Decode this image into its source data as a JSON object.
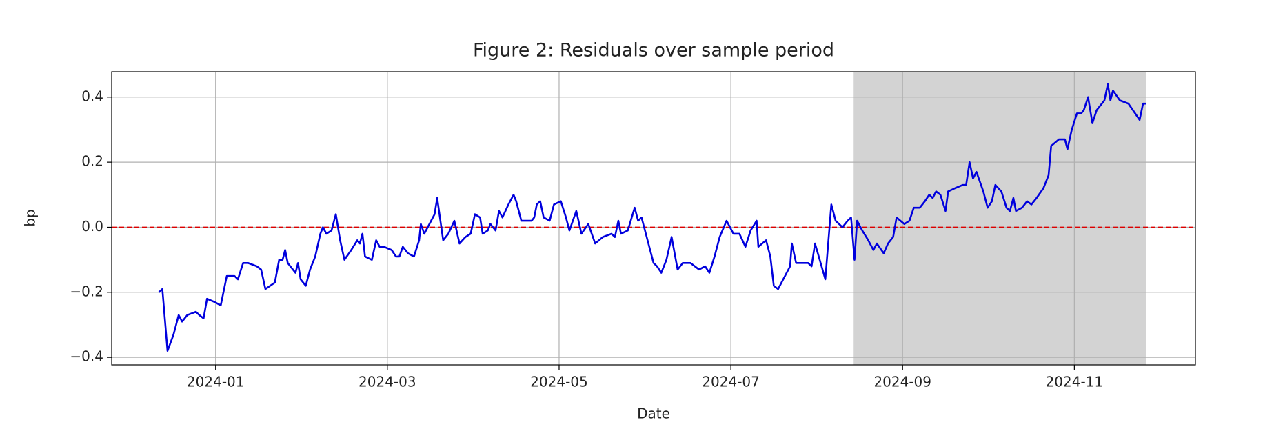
{
  "chart_data": {
    "type": "line",
    "title": "Figure 2: Residuals over sample period",
    "xlabel": "Date",
    "ylabel": "bp",
    "color": "#0000dd",
    "x": [
      0.34,
      0.38,
      0.44,
      0.51,
      0.57,
      0.61,
      0.67,
      0.77,
      0.81,
      0.86,
      0.9,
      0.99,
      1.06,
      1.13,
      1.22,
      1.26,
      1.32,
      1.38,
      1.48,
      1.53,
      1.58,
      1.69,
      1.74,
      1.78,
      1.81,
      1.84,
      1.93,
      1.96,
      1.99,
      2.05,
      2.1,
      2.16,
      2.22,
      2.25,
      2.29,
      2.35,
      2.4,
      2.45,
      2.5,
      2.58,
      2.65,
      2.68,
      2.71,
      2.74,
      2.82,
      2.87,
      2.91,
      2.96,
      3.05,
      3.1,
      3.14,
      3.18,
      3.24,
      3.31,
      3.37,
      3.39,
      3.43,
      3.49,
      3.55,
      3.58,
      3.65,
      3.71,
      3.78,
      3.84,
      3.91,
      3.97,
      4.02,
      4.08,
      4.11,
      4.17,
      4.2,
      4.26,
      4.3,
      4.34,
      4.41,
      4.47,
      4.5,
      4.56,
      4.68,
      4.71,
      4.74,
      4.78,
      4.82,
      4.89,
      4.94,
      5.02,
      5.08,
      5.12,
      5.2,
      5.26,
      5.34,
      5.42,
      5.51,
      5.61,
      5.65,
      5.69,
      5.72,
      5.8,
      5.88,
      5.92,
      5.96,
      6.04,
      6.1,
      6.14,
      6.19,
      6.25,
      6.31,
      6.38,
      6.44,
      6.53,
      6.63,
      6.7,
      6.75,
      6.81,
      6.87,
      6.95,
      7.03,
      7.1,
      7.17,
      7.23,
      7.3,
      7.32,
      7.41,
      7.46,
      7.5,
      7.55,
      7.69,
      7.71,
      7.76,
      7.9,
      7.94,
      7.98,
      8.1,
      8.17,
      8.22,
      8.3,
      8.36,
      8.4,
      8.44,
      8.47,
      8.53,
      8.6,
      8.66,
      8.7,
      8.78,
      8.83,
      8.89,
      8.93,
      9.02,
      9.08,
      9.13,
      9.2,
      9.26,
      9.31,
      9.35,
      9.39,
      9.44,
      9.5,
      9.53,
      9.61,
      9.7,
      9.74,
      9.78,
      9.82,
      9.86,
      9.94,
      9.99,
      10.04,
      10.08,
      10.15,
      10.21,
      10.25,
      10.29,
      10.32,
      10.39,
      10.45,
      10.5,
      10.56,
      10.64,
      10.7,
      10.73,
      10.82,
      10.89,
      10.92,
      10.97,
      11.03,
      11.08,
      11.11,
      11.16,
      11.21,
      11.26,
      11.35,
      11.39,
      11.42,
      11.45,
      11.53,
      11.63,
      11.76,
      11.8,
      11.84
    ],
    "values": [
      -0.2,
      -0.19,
      -0.38,
      -0.33,
      -0.27,
      -0.29,
      -0.27,
      -0.26,
      -0.27,
      -0.28,
      -0.22,
      -0.23,
      -0.24,
      -0.15,
      -0.15,
      -0.16,
      -0.11,
      -0.11,
      -0.12,
      -0.13,
      -0.19,
      -0.17,
      -0.1,
      -0.1,
      -0.07,
      -0.11,
      -0.14,
      -0.11,
      -0.16,
      -0.18,
      -0.13,
      -0.09,
      -0.02,
      0.0,
      -0.02,
      -0.01,
      0.04,
      -0.04,
      -0.1,
      -0.07,
      -0.04,
      -0.05,
      -0.02,
      -0.09,
      -0.1,
      -0.04,
      -0.06,
      -0.06,
      -0.07,
      -0.09,
      -0.09,
      -0.06,
      -0.08,
      -0.09,
      -0.04,
      0.01,
      -0.02,
      0.01,
      0.04,
      0.09,
      -0.04,
      -0.02,
      0.02,
      -0.05,
      -0.03,
      -0.02,
      0.04,
      0.03,
      -0.02,
      -0.01,
      0.01,
      -0.01,
      0.05,
      0.03,
      0.07,
      0.1,
      0.08,
      0.02,
      0.02,
      0.03,
      0.07,
      0.08,
      0.03,
      0.02,
      0.07,
      0.08,
      0.03,
      -0.01,
      0.05,
      -0.02,
      0.01,
      -0.05,
      -0.03,
      -0.02,
      -0.03,
      0.02,
      -0.02,
      -0.01,
      0.06,
      0.02,
      0.03,
      -0.05,
      -0.11,
      -0.12,
      -0.14,
      -0.1,
      -0.03,
      -0.13,
      -0.11,
      -0.11,
      -0.13,
      -0.12,
      -0.14,
      -0.09,
      -0.03,
      0.02,
      -0.02,
      -0.02,
      -0.06,
      -0.01,
      0.02,
      -0.06,
      -0.04,
      -0.09,
      -0.18,
      -0.19,
      -0.12,
      -0.05,
      -0.11,
      -0.11,
      -0.12,
      -0.05,
      -0.16,
      0.07,
      0.02,
      0.0,
      0.02,
      0.03,
      -0.1,
      0.02,
      -0.01,
      -0.04,
      -0.07,
      -0.05,
      -0.08,
      -0.05,
      -0.03,
      0.03,
      0.01,
      0.02,
      0.06,
      0.06,
      0.08,
      0.1,
      0.09,
      0.11,
      0.1,
      0.05,
      0.11,
      0.12,
      0.13,
      0.13,
      0.2,
      0.15,
      0.17,
      0.11,
      0.06,
      0.08,
      0.13,
      0.11,
      0.06,
      0.05,
      0.09,
      0.05,
      0.06,
      0.08,
      0.07,
      0.09,
      0.12,
      0.16,
      0.25,
      0.27,
      0.27,
      0.24,
      0.3,
      0.35,
      0.35,
      0.36,
      0.4,
      0.32,
      0.36,
      0.39,
      0.44,
      0.39,
      0.42,
      0.39,
      0.38,
      0.33,
      0.38,
      0.38
    ],
    "xlim": [
      -0.21,
      12.41
    ],
    "ylim": [
      -0.423,
      0.478
    ],
    "xticks": [
      {
        "value": 1,
        "label": "2024-01"
      },
      {
        "value": 3,
        "label": "2024-03"
      },
      {
        "value": 5,
        "label": "2024-05"
      },
      {
        "value": 7,
        "label": "2024-07"
      },
      {
        "value": 9,
        "label": "2024-09"
      },
      {
        "value": 11,
        "label": "2024-11"
      }
    ],
    "yticks": [
      {
        "value": -0.4,
        "label": "−0.4"
      },
      {
        "value": -0.2,
        "label": "−0.2"
      },
      {
        "value": 0,
        "label": "0.0"
      },
      {
        "value": 0.2,
        "label": "0.2"
      },
      {
        "value": 0.4,
        "label": "0.4"
      }
    ],
    "grid": true,
    "shade": [
      8.43,
      11.84
    ],
    "shade_color": "#d3d3d3",
    "hline": 0,
    "hline_color": "#dd0000"
  }
}
